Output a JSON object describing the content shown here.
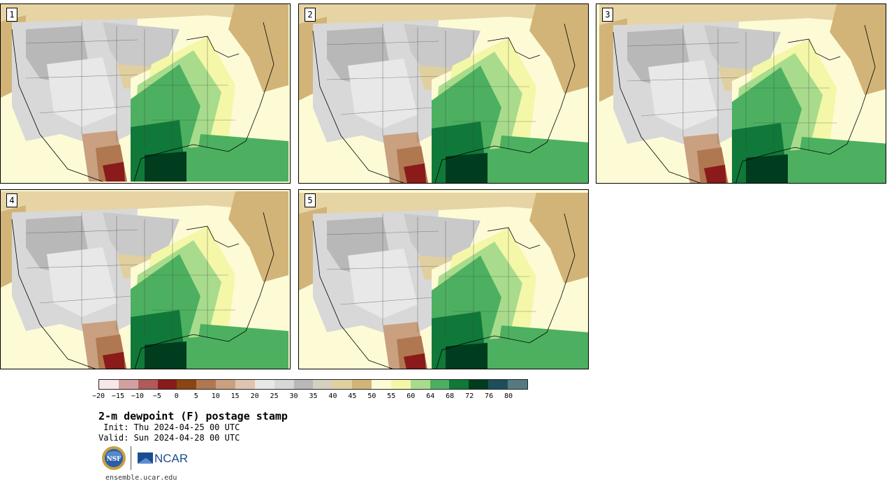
{
  "panels": [
    {
      "label": "1",
      "variant": 0
    },
    {
      "label": "2",
      "variant": 1
    },
    {
      "label": "3",
      "variant": 2
    },
    {
      "label": "4",
      "variant": 3
    },
    {
      "label": "5",
      "variant": 4
    }
  ],
  "colorbar": {
    "colors": [
      "#f6e8e8",
      "#d2a0a0",
      "#b05a5a",
      "#8b1a1a",
      "#8b4513",
      "#b07850",
      "#c9a080",
      "#e0c4b0",
      "#e8e8e8",
      "#d8d8d8",
      "#b8b8b8",
      "#d6d0c0",
      "#e0d0a0",
      "#d2b478",
      "#fdfbd6",
      "#f4f7a8",
      "#a8dc8c",
      "#4cb060",
      "#107838",
      "#003c1e",
      "#1e4e5c",
      "#557a80"
    ],
    "ticks": [
      "−20",
      "−15",
      "−10",
      "−5",
      "0",
      "5",
      "10",
      "15",
      "20",
      "25",
      "30",
      "35",
      "40",
      "45",
      "50",
      "55",
      "60",
      "64",
      "68",
      "72",
      "76",
      "80"
    ]
  },
  "title": "2-m dewpoint (F) postage stamp",
  "init": " Init: Thu 2024-04-25 00 UTC",
  "valid": "Valid: Sun 2024-04-28 00 UTC",
  "logos": {
    "nsf": "NSF",
    "ncar": "NCAR"
  },
  "footer": "ensemble.ucar.edu"
}
